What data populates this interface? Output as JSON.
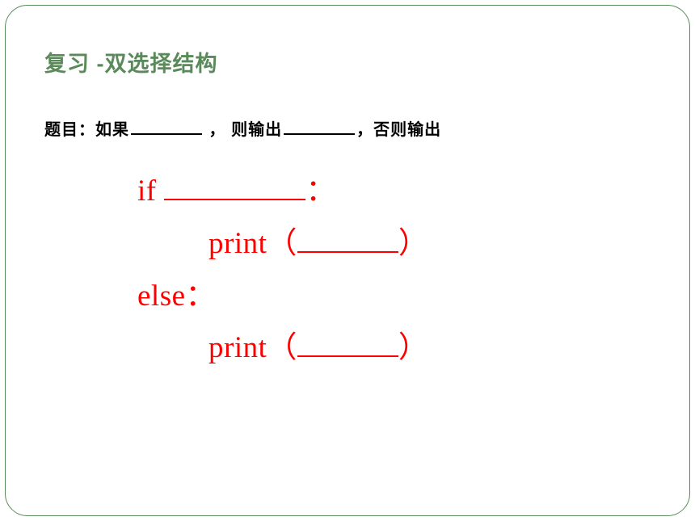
{
  "title": "复习 -双选择结构",
  "question": {
    "part1": "题目：如果",
    "part2": " ， 则输出",
    "part3": "，否则输出"
  },
  "code": {
    "line1_if": "if ",
    "line1_colon": "：",
    "line2_print": "print",
    "line2_lparen": "（",
    "line2_rparen": "）",
    "line3_else": "else",
    "line3_colon": "：",
    "line4_print": "print",
    "line4_lparen": "（",
    "line4_rparen": "）"
  },
  "colors": {
    "title_color": "#5a8a5a",
    "border_color": "#5a8a5a",
    "text_color": "#000000",
    "code_color": "#ff0000",
    "background": "#ffffff"
  },
  "typography": {
    "title_fontsize": 27,
    "question_fontsize": 20,
    "code_fontsize": 37
  }
}
